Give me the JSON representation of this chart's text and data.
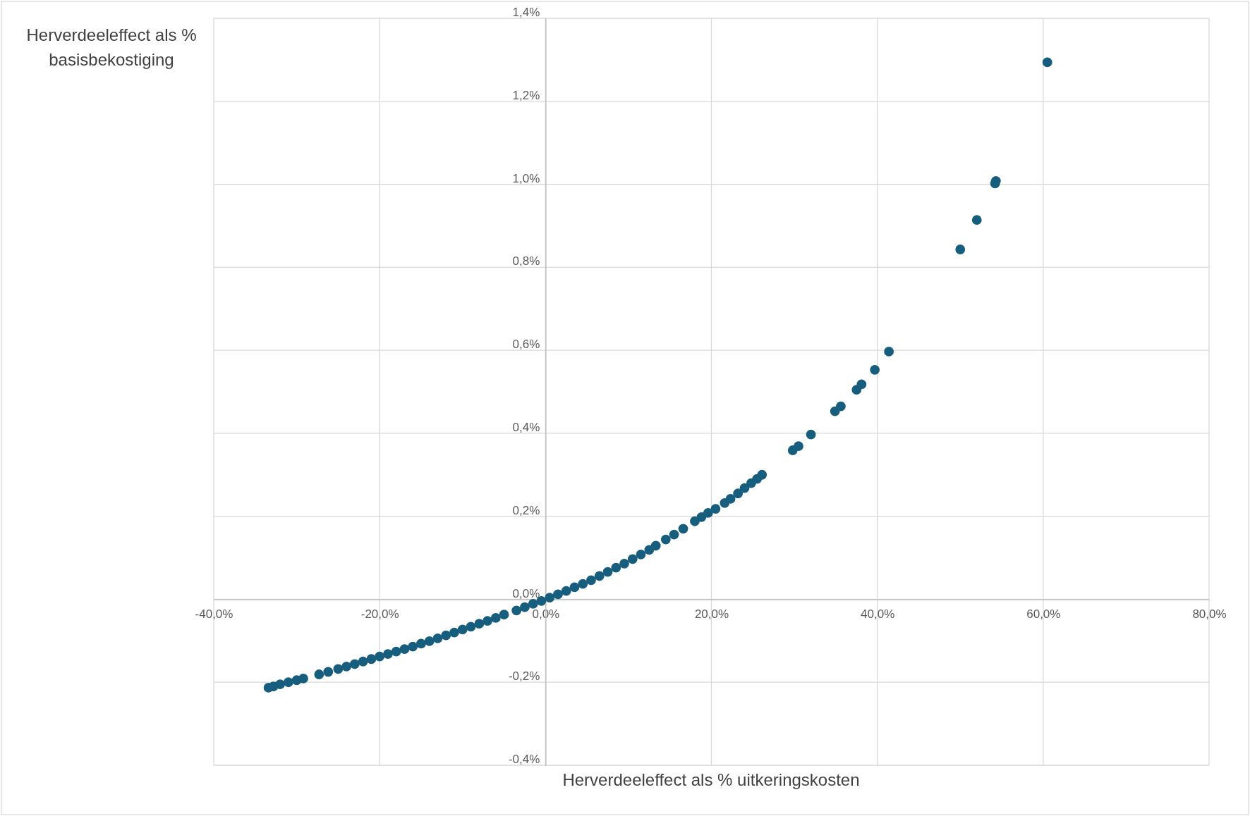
{
  "chart_data": {
    "type": "scatter",
    "ylabel": "Herverdeeleffect als % basisbekostiging",
    "xlabel": "Herverdeeleffect als % uitkeringskosten",
    "marker": "circle",
    "grid": true,
    "xlim": [
      -40,
      80
    ],
    "ylim": [
      -0.4,
      1.4
    ],
    "xticks": [
      {
        "value": -40,
        "label": "-40,0%"
      },
      {
        "value": -20,
        "label": "-20,0%"
      },
      {
        "value": 0,
        "label": "0,0%"
      },
      {
        "value": 20,
        "label": "20,0%"
      },
      {
        "value": 40,
        "label": "40,0%"
      },
      {
        "value": 60,
        "label": "60,0%"
      },
      {
        "value": 80,
        "label": "80,0%"
      }
    ],
    "yticks": [
      {
        "value": -0.4,
        "label": "-0,4%"
      },
      {
        "value": -0.2,
        "label": "-0,2%"
      },
      {
        "value": 0,
        "label": "0,0%"
      },
      {
        "value": 0.2,
        "label": "0,2%"
      },
      {
        "value": 0.4,
        "label": "0,4%"
      },
      {
        "value": 0.6,
        "label": "0,6%"
      },
      {
        "value": 0.8,
        "label": "0,8%"
      },
      {
        "value": 1.0,
        "label": "1,0%"
      },
      {
        "value": 1.2,
        "label": "1,2%"
      },
      {
        "value": 1.4,
        "label": "1,4%"
      }
    ],
    "series": [
      {
        "color": "#175e7e",
        "x": [
          -33.4,
          -32.8,
          -32.0,
          -31.0,
          -30.0,
          -29.2,
          -27.3,
          -26.2,
          -25.0,
          -24.0,
          -23.0,
          -22.0,
          -21.0,
          -20.0,
          -19.0,
          -18.0,
          -17.0,
          -16.0,
          -15.0,
          -14.0,
          -13.0,
          -12.0,
          -11.0,
          -10.0,
          -9.0,
          -8.0,
          -7.0,
          -6.0,
          -5.0,
          -3.5,
          -2.5,
          -1.5,
          -0.5,
          0.5,
          1.5,
          2.5,
          3.5,
          4.5,
          5.5,
          6.5,
          7.5,
          8.5,
          9.5,
          10.5,
          11.5,
          12.5,
          13.3,
          14.5,
          15.5,
          16.6,
          18.0,
          18.8,
          19.6,
          20.5,
          21.6,
          22.3,
          23.2,
          24.0,
          24.8,
          25.5,
          26.1,
          29.8,
          30.5,
          32.0,
          34.9,
          35.6,
          37.5,
          38.1,
          39.7,
          41.4,
          50.0,
          52.0,
          54.2,
          54.3,
          60.5
        ],
        "values": [
          -0.213,
          -0.21,
          -0.205,
          -0.2,
          -0.195,
          -0.191,
          -0.181,
          -0.175,
          -0.168,
          -0.162,
          -0.156,
          -0.15,
          -0.144,
          -0.138,
          -0.132,
          -0.126,
          -0.12,
          -0.114,
          -0.107,
          -0.101,
          -0.094,
          -0.087,
          -0.08,
          -0.073,
          -0.066,
          -0.059,
          -0.052,
          -0.045,
          -0.037,
          -0.027,
          -0.019,
          -0.011,
          -0.004,
          0.004,
          0.012,
          0.02,
          0.029,
          0.037,
          0.046,
          0.056,
          0.066,
          0.076,
          0.086,
          0.097,
          0.108,
          0.119,
          0.129,
          0.144,
          0.156,
          0.17,
          0.188,
          0.198,
          0.208,
          0.218,
          0.232,
          0.242,
          0.255,
          0.268,
          0.28,
          0.29,
          0.3,
          0.359,
          0.369,
          0.397,
          0.453,
          0.465,
          0.505,
          0.518,
          0.553,
          0.597,
          0.843,
          0.914,
          1.002,
          1.008,
          1.294
        ]
      }
    ]
  }
}
